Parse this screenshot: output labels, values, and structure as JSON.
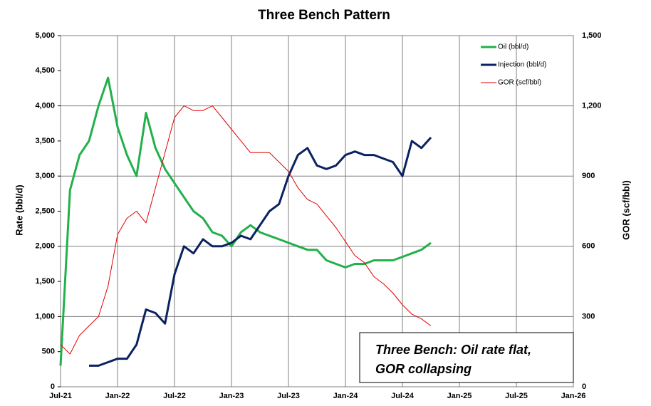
{
  "chart_data": {
    "type": "line",
    "title": "Three Bench Pattern",
    "y_label": "Rate (bbl/d)",
    "y2_label": "GOR (scf/bbl)",
    "annotation": [
      "Three Bench: Oil rate flat,",
      "GOR collapsing"
    ],
    "x": [
      "2021-07",
      "2021-08",
      "2021-09",
      "2021-10",
      "2021-11",
      "2021-12",
      "2022-01",
      "2022-02",
      "2022-03",
      "2022-04",
      "2022-05",
      "2022-06",
      "2022-07",
      "2022-08",
      "2022-09",
      "2022-10",
      "2022-11",
      "2022-12",
      "2023-01",
      "2023-02",
      "2023-03",
      "2023-04",
      "2023-05",
      "2023-06",
      "2023-07",
      "2023-08",
      "2023-09",
      "2023-10",
      "2023-11",
      "2023-12",
      "2024-01",
      "2024-02",
      "2024-03",
      "2024-04",
      "2024-05",
      "2024-06",
      "2024-07",
      "2024-08",
      "2024-09",
      "2024-10"
    ],
    "series": [
      {
        "name": "Oil (bbl/d)",
        "color": "#22b04b",
        "width": 3,
        "values": [
          300,
          2800,
          3300,
          3500,
          4000,
          4400,
          3700,
          3300,
          3000,
          3900,
          3400,
          3100,
          2900,
          2700,
          2500,
          2400,
          2200,
          2150,
          2000,
          2200,
          2300,
          2200,
          2150,
          2100,
          2050,
          2000,
          1950,
          1950,
          1800,
          1750,
          1700,
          1750,
          1750,
          1800,
          1800,
          1800,
          1850,
          1900,
          1950,
          2050
        ]
      },
      {
        "name": "Injection (bbl/d)",
        "color": "#0a2260",
        "width": 3,
        "values": [
          null,
          null,
          null,
          300,
          300,
          350,
          400,
          400,
          600,
          1100,
          1050,
          900,
          1600,
          2000,
          1900,
          2100,
          2000,
          2000,
          2050,
          2150,
          2100,
          2300,
          2500,
          2600,
          3000,
          3300,
          3400,
          3150,
          3100,
          3150,
          3300,
          3350,
          3300,
          3300,
          3250,
          3200,
          3000,
          3500,
          3400,
          3550
        ]
      },
      {
        "name": "GOR (scf/bbl)",
        "color": "#e00000",
        "width": 1,
        "axis": "y2",
        "values": [
          180,
          140,
          220,
          260,
          300,
          430,
          650,
          720,
          750,
          700,
          850,
          1000,
          1150,
          1200,
          1180,
          1180,
          1200,
          1150,
          1100,
          1050,
          1000,
          1000,
          1000,
          960,
          920,
          850,
          800,
          780,
          730,
          680,
          620,
          560,
          530,
          470,
          440,
          400,
          350,
          310,
          290,
          260
        ]
      }
    ],
    "xlim": [
      "2021-07",
      "2026-01"
    ],
    "xticks": [
      {
        "value": "2021-07",
        "label": "Jul-21"
      },
      {
        "value": "2022-01",
        "label": "Jan-22"
      },
      {
        "value": "2022-07",
        "label": "Jul-22"
      },
      {
        "value": "2023-01",
        "label": "Jan-23"
      },
      {
        "value": "2023-07",
        "label": "Jul-23"
      },
      {
        "value": "2024-01",
        "label": "Jan-24"
      },
      {
        "value": "2024-07",
        "label": "Jul-24"
      },
      {
        "value": "2025-01",
        "label": "Jan-25"
      },
      {
        "value": "2025-07",
        "label": "Jul-25"
      },
      {
        "value": "2026-01",
        "label": "Jan-26"
      }
    ],
    "ylim": [
      0,
      5000
    ],
    "yticks": [
      0,
      500,
      {
        "value": 1000,
        "label": "1,000"
      },
      {
        "value": 1500,
        "label": "1,500"
      },
      {
        "value": 2000,
        "label": "2,000"
      },
      {
        "value": 2500,
        "label": "2,500"
      },
      {
        "value": 3000,
        "label": "3,000"
      },
      {
        "value": 3500,
        "label": "3,500"
      },
      {
        "value": 4000,
        "label": "4,000"
      },
      {
        "value": 4500,
        "label": "4,500"
      },
      {
        "value": 5000,
        "label": "5,000"
      }
    ],
    "y2lim": [
      0,
      1500
    ],
    "y2ticks": [
      0,
      300,
      600,
      900,
      {
        "value": 1200,
        "label": "1,200"
      },
      {
        "value": 1500,
        "label": "1,500"
      }
    ],
    "grid": true,
    "legend": "top-right"
  }
}
